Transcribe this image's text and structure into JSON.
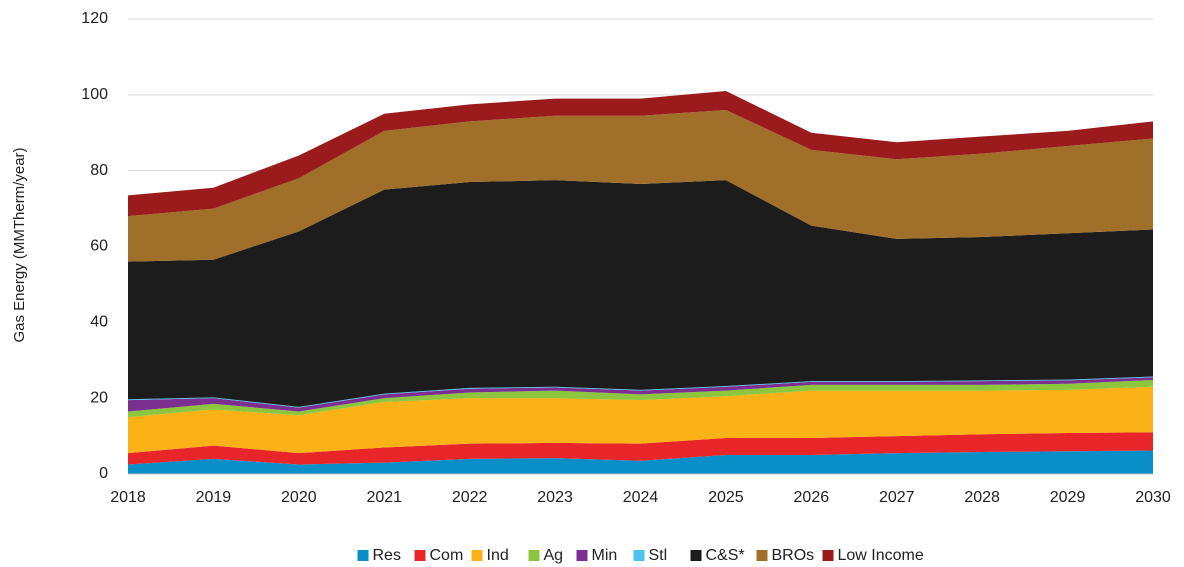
{
  "chart_data": {
    "type": "stacked-area",
    "y_label": "Gas Energy (MMTherm/year)",
    "categories": [
      "2018",
      "2019",
      "2020",
      "2021",
      "2022",
      "2023",
      "2024",
      "2025",
      "2026",
      "2027",
      "2028",
      "2029",
      "2030"
    ],
    "ylim": [
      0,
      120
    ],
    "yticks": [
      0,
      20,
      40,
      60,
      80,
      100,
      120
    ],
    "grid": true,
    "series": [
      {
        "name": "Res",
        "color": "#0a8fc9",
        "values": [
          2.5,
          4,
          2.5,
          3,
          4,
          4.2,
          3.5,
          5,
          5,
          5.5,
          5.8,
          6,
          6.2
        ]
      },
      {
        "name": "Com",
        "color": "#e8262a",
        "values": [
          3,
          3.5,
          3,
          4,
          4,
          4,
          4.5,
          4.5,
          4.5,
          4.5,
          4.7,
          4.8,
          4.8
        ]
      },
      {
        "name": "Ind",
        "color": "#fbb216",
        "values": [
          9.5,
          9.5,
          10,
          12,
          12,
          11.8,
          11.5,
          11,
          12.5,
          12,
          11.5,
          11.4,
          12
        ]
      },
      {
        "name": "Ag",
        "color": "#8cc63f",
        "values": [
          1.5,
          1.5,
          1,
          1,
          1.5,
          2,
          1.5,
          1.5,
          1.5,
          1.5,
          1.5,
          1.6,
          1.8
        ]
      },
      {
        "name": "Min",
        "color": "#7b2f8e",
        "values": [
          3,
          1.5,
          1,
          1,
          1,
          0.8,
          1,
          1,
          0.8,
          0.8,
          1,
          0.9,
          0.7
        ]
      },
      {
        "name": "Stl",
        "color": "#4fc3f0",
        "values": [
          0.2,
          0.2,
          0.2,
          0.2,
          0.2,
          0.2,
          0.2,
          0.2,
          0.2,
          0.2,
          0.2,
          0.2,
          0.2
        ]
      },
      {
        "name": "C&S*",
        "color": "#1c1c1c",
        "values": [
          36.3,
          36.3,
          46.3,
          53.8,
          54.3,
          54.5,
          54.3,
          54.3,
          41,
          37.5,
          37.8,
          38.6,
          38.8
        ]
      },
      {
        "name": "BROs",
        "color": "#a0702a",
        "values": [
          12,
          13.5,
          14,
          15.5,
          16,
          17,
          18,
          18.5,
          20,
          21,
          22,
          23,
          24
        ]
      },
      {
        "name": "Low Income",
        "color": "#9b1b1d",
        "values": [
          5.5,
          5.5,
          6,
          4.5,
          4.5,
          4.5,
          4.5,
          5,
          4.5,
          4.5,
          4.5,
          4,
          4.5
        ]
      }
    ]
  }
}
